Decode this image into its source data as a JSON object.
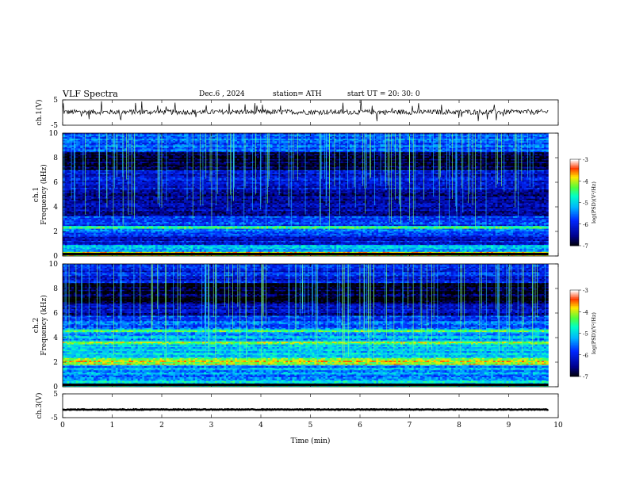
{
  "header": {
    "title": "VLF  Spectra",
    "date": "Dec.6  , 2024",
    "station": "station= ATH",
    "start": "start  UT  =    20: 30: 0"
  },
  "chart_data": {
    "type": "heatmap",
    "xlabel": "Time  (min)",
    "xlim": [
      0,
      10
    ],
    "xticks": [
      "0",
      "1",
      "2",
      "3",
      "4",
      "5",
      "6",
      "7",
      "8",
      "9",
      "10"
    ],
    "data_end_min": 9.8,
    "panels": [
      {
        "kind": "line",
        "ylabel": "ch.1(V)",
        "ylim": [
          -5,
          5
        ],
        "yticks": [
          "5",
          "-5"
        ],
        "mean": 0.2,
        "noise_amplitude": 1.0,
        "spikes": "frequent sferics"
      },
      {
        "kind": "heatmap",
        "ylabel": "ch.1\nFrequency  (kHz)",
        "ylim": [
          0,
          10
        ],
        "yticks": [
          "0",
          "2",
          "4",
          "6",
          "8",
          "10"
        ],
        "colorbar_label": "log(PSD)(V²/Hz)",
        "colorbar_ticks": [
          "-3",
          "-4",
          "-5",
          "-6",
          "-7"
        ],
        "colorbar_range": [
          -7,
          -3
        ],
        "bands_kHz": [
          {
            "from": 0,
            "to": 0.3,
            "level": -3.8
          },
          {
            "from": 0.3,
            "to": 0.9,
            "level": -5.2
          },
          {
            "from": 0.9,
            "to": 1.7,
            "level": -6.1
          },
          {
            "from": 1.7,
            "to": 2.2,
            "level": -5.6
          },
          {
            "from": 2.2,
            "to": 2.4,
            "level": -4.6
          },
          {
            "from": 2.4,
            "to": 3.2,
            "level": -5.8
          },
          {
            "from": 3.2,
            "to": 4.5,
            "level": -6.3
          },
          {
            "from": 4.5,
            "to": 5.5,
            "level": -6.5
          },
          {
            "from": 5.5,
            "to": 7.0,
            "level": -6.2
          },
          {
            "from": 7.0,
            "to": 8.5,
            "level": -6.8
          },
          {
            "from": 8.5,
            "to": 10,
            "level": -5.6
          }
        ]
      },
      {
        "kind": "heatmap",
        "ylabel": "ch.2\nFrequency  (kHz)",
        "ylim": [
          0,
          10
        ],
        "yticks": [
          "0",
          "2",
          "4",
          "6",
          "8",
          "10"
        ],
        "colorbar_label": "log(PSD)(V²/Hz)",
        "colorbar_ticks": [
          "-3",
          "-4",
          "-5",
          "-6",
          "-7"
        ],
        "colorbar_range": [
          -7,
          -3
        ],
        "bands_kHz": [
          {
            "from": 0,
            "to": 0.5,
            "level": -4.8
          },
          {
            "from": 0.5,
            "to": 1.8,
            "level": -5.3
          },
          {
            "from": 1.8,
            "to": 2.3,
            "level": -4.0
          },
          {
            "from": 2.3,
            "to": 3.4,
            "level": -5.0
          },
          {
            "from": 3.4,
            "to": 3.7,
            "level": -4.3
          },
          {
            "from": 3.7,
            "to": 4.4,
            "level": -5.2
          },
          {
            "from": 4.4,
            "to": 4.7,
            "level": -4.4
          },
          {
            "from": 4.7,
            "to": 5.8,
            "level": -5.6
          },
          {
            "from": 5.8,
            "to": 6.8,
            "level": -6.3
          },
          {
            "from": 6.8,
            "to": 8.5,
            "level": -6.9
          },
          {
            "from": 8.5,
            "to": 10,
            "level": -6.0
          }
        ]
      },
      {
        "kind": "line",
        "ylabel": "ch.3(V)",
        "ylim": [
          -5,
          5
        ],
        "yticks": [
          "5",
          "-5"
        ],
        "mean": -1.6,
        "noise_amplitude": 0.15,
        "spikes": "none"
      }
    ]
  }
}
